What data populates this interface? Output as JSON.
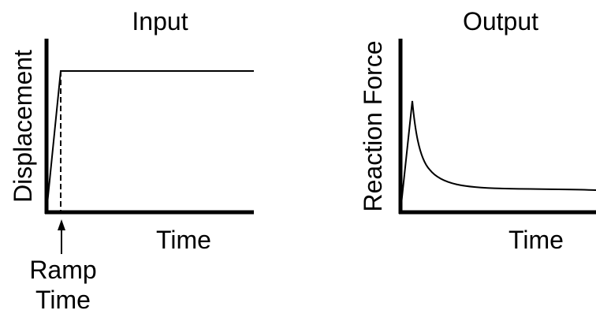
{
  "input_panel": {
    "title": "Input",
    "y_axis_label": "Displacement",
    "x_axis_label": "Time",
    "annotation": [
      "Ramp",
      "Time"
    ]
  },
  "output_panel": {
    "title": "Output",
    "y_axis_label": "Reaction Force",
    "x_axis_label": "Time"
  },
  "colors": {
    "line": "#000000",
    "background": "#ffffff"
  }
}
